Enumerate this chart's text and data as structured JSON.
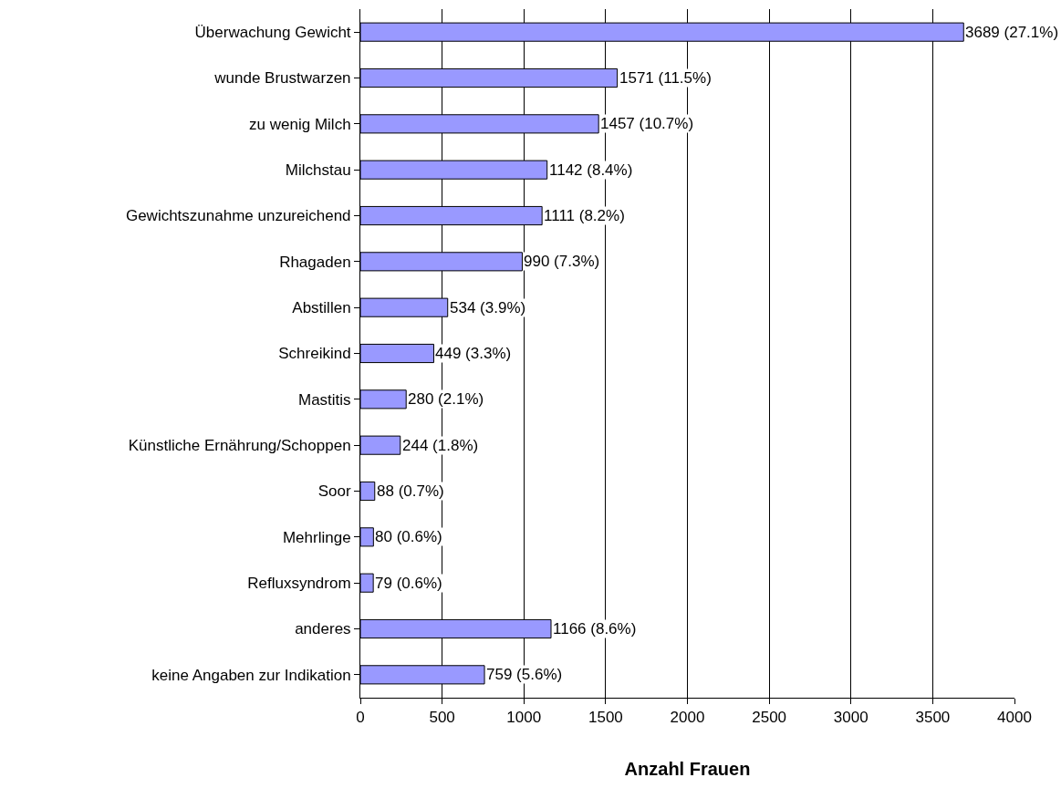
{
  "chart_data": {
    "type": "bar",
    "orientation": "horizontal",
    "xlabel": "Anzahl Frauen",
    "categories": [
      "Überwachung Gewicht",
      "wunde Brustwarzen",
      "zu wenig Milch",
      "Milchstau",
      "Gewichtszunahme unzureichend",
      "Rhagaden",
      "Abstillen",
      "Schreikind",
      "Mastitis",
      "Künstliche Ernährung/Schoppen",
      "Soor",
      "Mehrlinge",
      "Refluxsyndrom",
      "anderes",
      "keine Angaben zur Indikation"
    ],
    "values": [
      3689,
      1571,
      1457,
      1142,
      1111,
      990,
      534,
      449,
      280,
      244,
      88,
      80,
      79,
      1166,
      759
    ],
    "value_labels": [
      "3689 (27.1%)",
      "1571 (11.5%)",
      "1457 (10.7%)",
      "1142 (8.4%)",
      "1111 (8.2%)",
      "990 (7.3%)",
      "534 (3.9%)",
      "449 (3.3%)",
      "280 (2.1%)",
      "244 (1.8%)",
      "88 (0.7%)",
      "80 (0.6%)",
      "79 (0.6%)",
      "1166 (8.6%)",
      "759 (5.6%)"
    ],
    "color": "#9999ff",
    "xlim": [
      0,
      4000
    ],
    "xticks": [
      0,
      500,
      1000,
      1500,
      2000,
      2500,
      3000,
      3500,
      4000
    ],
    "grid": "x"
  }
}
